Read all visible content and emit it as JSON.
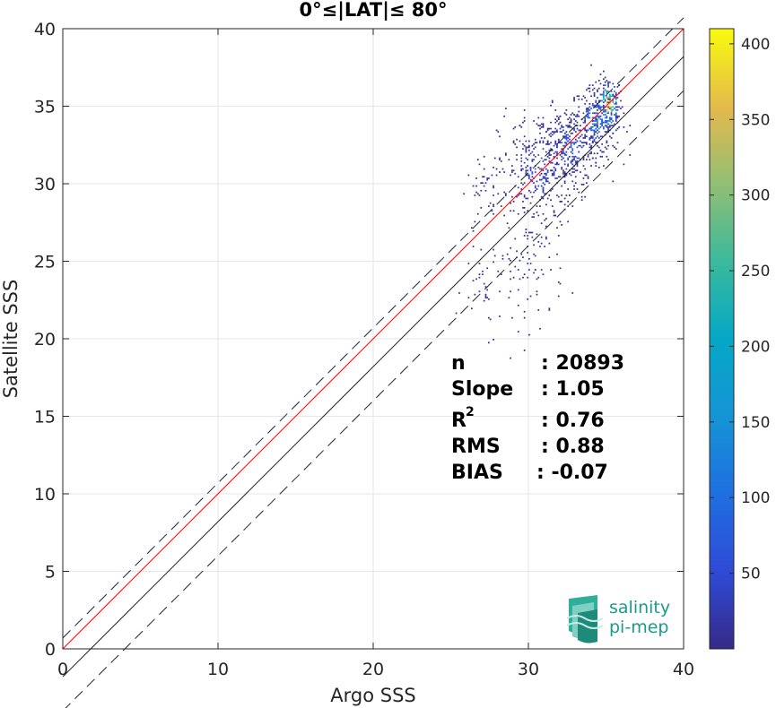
{
  "chart_data": {
    "type": "heatmap",
    "title": "0°≤|LAT|≤ 80°",
    "xlabel": "Argo SSS",
    "ylabel": "Satellite SSS",
    "xlim": [
      0,
      40
    ],
    "ylim": [
      0,
      40
    ],
    "xticks": [
      "0",
      "10",
      "20",
      "30",
      "40"
    ],
    "yticks": [
      "0",
      "5",
      "10",
      "15",
      "20",
      "25",
      "30",
      "35",
      "40"
    ],
    "grid": true,
    "colorbar": {
      "range": [
        0,
        410
      ],
      "ticks": [
        "50",
        "100",
        "150",
        "200",
        "250",
        "300",
        "350",
        "400"
      ],
      "colormap": "parula"
    },
    "lines": [
      {
        "kind": "one-to-one",
        "color": "#000000",
        "style": "solid"
      },
      {
        "kind": "offset-plus",
        "color": "#000000",
        "style": "dashed"
      },
      {
        "kind": "offset-minus",
        "color": "#000000",
        "style": "dashed"
      },
      {
        "kind": "regression",
        "color": "#ff0000",
        "style": "solid"
      }
    ],
    "stats": {
      "n_label": "n",
      "n_value": ": 20893",
      "slope_label": "Slope",
      "slope_value": ": 1.05",
      "r2_label": "R",
      "r2_sup": "2",
      "r2_value": ": 0.76",
      "rms_label": "RMS",
      "rms_value": ": 0.88",
      "bias_label": "BIAS",
      "bias_value": ": -0.07"
    },
    "density_clusters": [
      {
        "x": 35.1,
        "y": 35.0,
        "sx": 0.45,
        "sy": 0.9,
        "n": 160,
        "peak": 400
      },
      {
        "x": 34.3,
        "y": 34.0,
        "sx": 0.8,
        "sy": 1.1,
        "n": 260,
        "peak": 120
      },
      {
        "x": 32.5,
        "y": 32.3,
        "sx": 1.2,
        "sy": 1.3,
        "n": 320,
        "peak": 70
      },
      {
        "x": 30.6,
        "y": 30.8,
        "sx": 1.3,
        "sy": 1.8,
        "n": 280,
        "peak": 45
      },
      {
        "x": 30.2,
        "y": 25.5,
        "sx": 1.0,
        "sy": 2.4,
        "n": 90,
        "peak": 20
      },
      {
        "x": 27.2,
        "y": 29.5,
        "sx": 0.6,
        "sy": 0.9,
        "n": 40,
        "peak": 20
      },
      {
        "x": 27.5,
        "y": 23.5,
        "sx": 1.1,
        "sy": 1.6,
        "n": 50,
        "peak": 15
      }
    ]
  },
  "logo": {
    "line1": "salinity",
    "line2": "pi-mep"
  }
}
